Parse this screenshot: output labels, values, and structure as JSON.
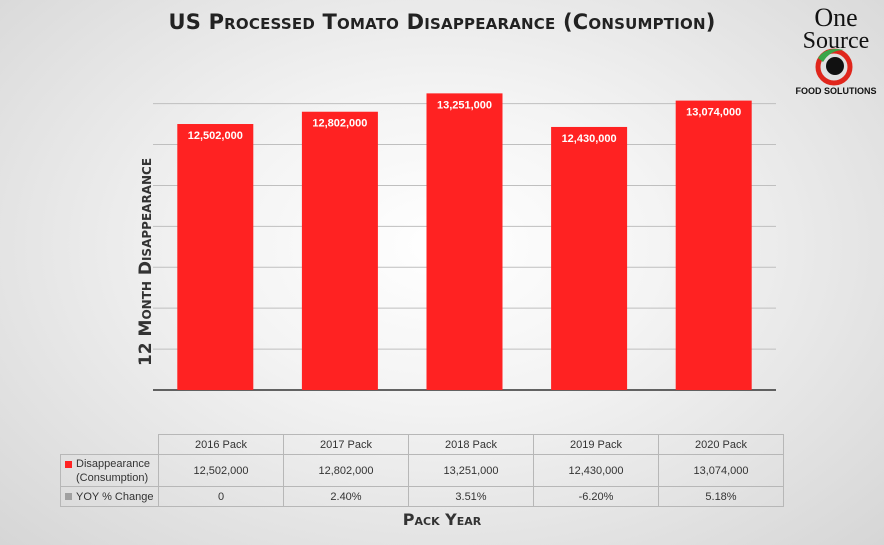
{
  "chart_data": {
    "type": "bar",
    "title": "US Processed Tomato Disappearance (Consumption)",
    "ylabel": "12 Month Disappearance",
    "xlabel": "Pack Year",
    "categories": [
      "2016 Pack",
      "2017 Pack",
      "2018 Pack",
      "2019 Pack",
      "2020 Pack"
    ],
    "series": [
      {
        "name": "Disappearance (Consumption)",
        "values": [
          12502000,
          12802000,
          13251000,
          12430000,
          13074000
        ],
        "labels": [
          "12,502,000",
          "12,802,000",
          "13,251,000",
          "12,430,000",
          "13,074,000"
        ],
        "color": "#ff2222"
      }
    ],
    "yoy": {
      "name": "YOY % Change",
      "values": [
        "0",
        "2.40%",
        "3.51%",
        "-6.20%",
        "5.18%"
      ],
      "color": "#a0a0a0"
    },
    "ylim": [
      6000000,
      13700000
    ],
    "grid": true,
    "legend": "data-table"
  },
  "logo": {
    "line1": "One",
    "line2": "Source",
    "tagline": "FOOD SOLUTIONS",
    "colors": {
      "red": "#e0261c",
      "green": "#3aa648",
      "black": "#111111"
    }
  }
}
